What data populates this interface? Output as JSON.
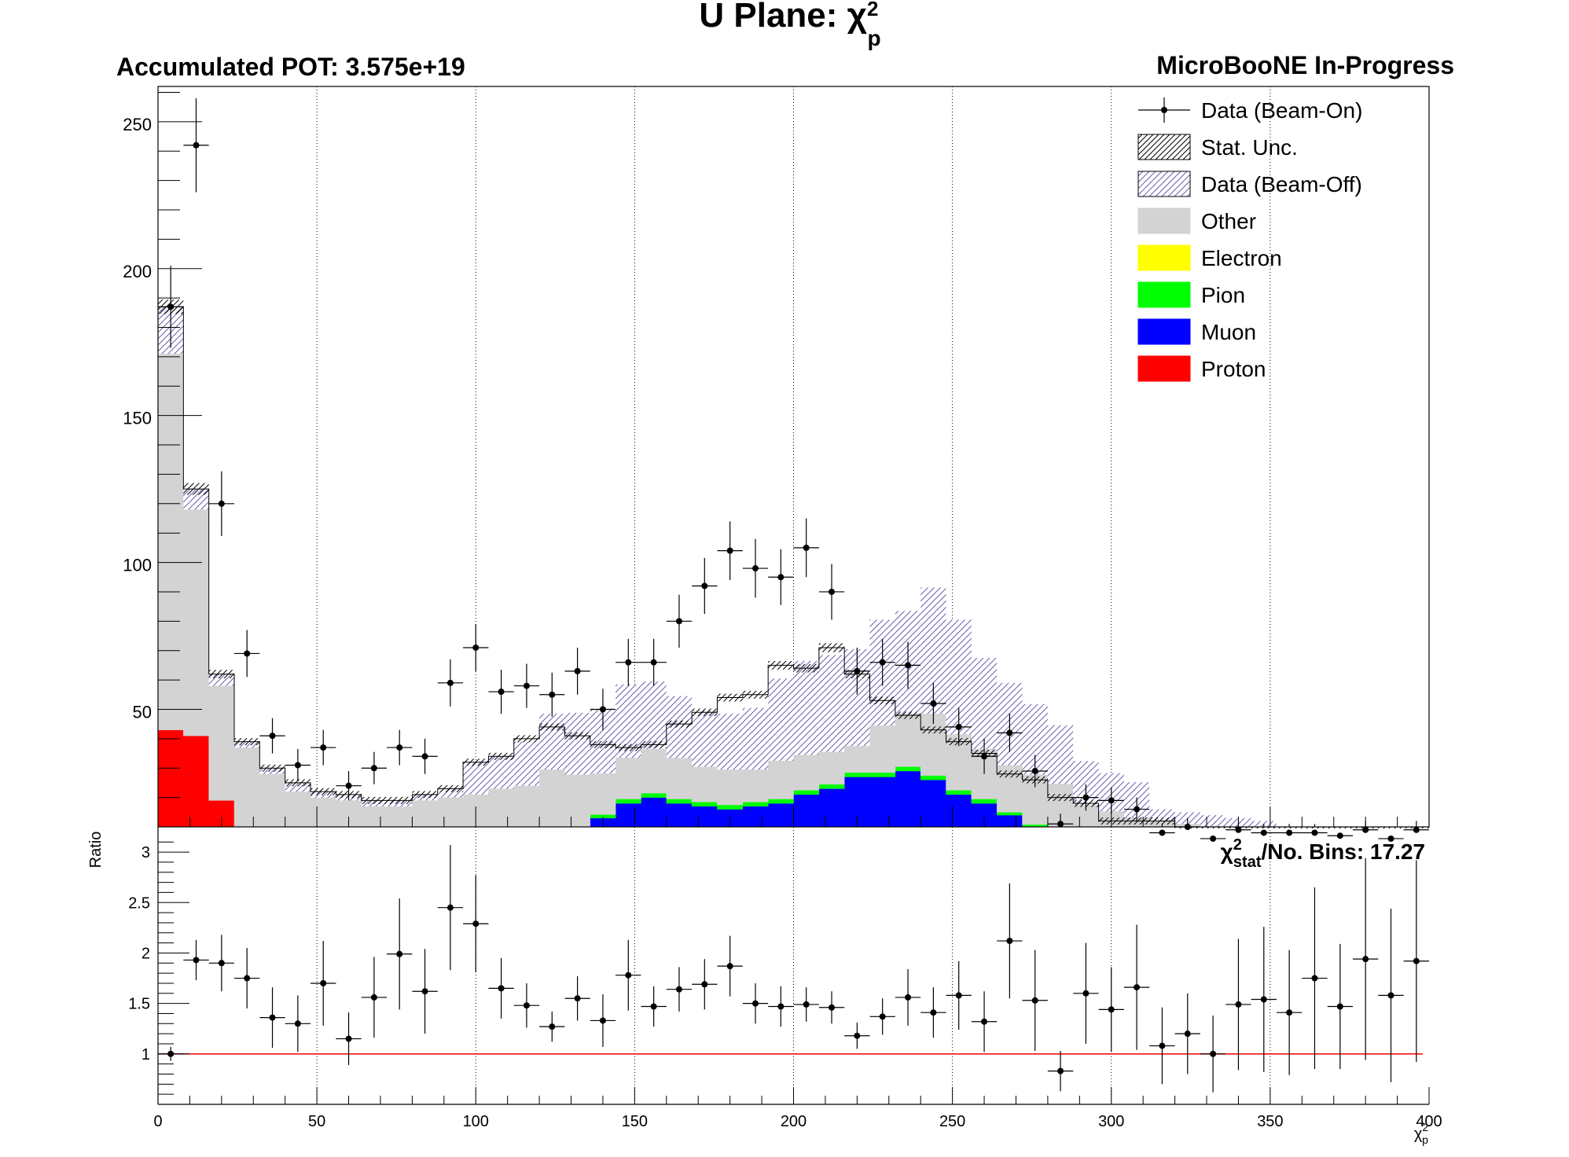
{
  "chart_data": [
    {
      "type": "histogram",
      "title_main": "U Plane: ",
      "title_symbol": "χ",
      "title_sup": "2",
      "title_sub": "p",
      "pot_label": "Accumulated POT: 3.575e+19",
      "experiment_label": "MicroBooNE In-Progress",
      "xlim": [
        0,
        400
      ],
      "ylim": [
        10,
        262
      ],
      "bin_width": 8,
      "x_ticks": [
        0,
        50,
        100,
        150,
        200,
        250,
        300,
        350,
        400
      ],
      "y_ticks": [
        50,
        100,
        150,
        200,
        250
      ],
      "vertical_grid": true,
      "legend_placement": "top-right",
      "legend": [
        {
          "label": "Data (Beam-On)",
          "style": "marker"
        },
        {
          "label": "Stat. Unc.",
          "style": "hatch-black"
        },
        {
          "label": "Data (Beam-Off)",
          "style": "hatch-purple"
        },
        {
          "label": "Other",
          "color": "#d3d3d3"
        },
        {
          "label": "Electron",
          "color": "#ffff00"
        },
        {
          "label": "Pion",
          "color": "#00ff00"
        },
        {
          "label": "Muon",
          "color": "#0000ff"
        },
        {
          "label": "Proton",
          "color": "#ff0000"
        }
      ],
      "series": [
        {
          "name": "Proton",
          "color": "#ff0000",
          "values": [
            43,
            41,
            19,
            10,
            8,
            5,
            4,
            3,
            2,
            2,
            2,
            2,
            2,
            2,
            2,
            2,
            2,
            2,
            2,
            2,
            2,
            2,
            2,
            2,
            2,
            2,
            2,
            2,
            2,
            2,
            2,
            2,
            2,
            2,
            2,
            2,
            2,
            2,
            2,
            2,
            2,
            2,
            2,
            2,
            2,
            2,
            2,
            2,
            2,
            2
          ]
        },
        {
          "name": "Muon",
          "color": "#0000ff",
          "values": [
            0,
            0,
            0,
            0,
            0,
            0,
            0,
            0,
            0,
            0,
            0,
            0,
            0,
            0,
            0,
            1,
            6,
            11,
            16,
            18,
            16,
            15,
            14,
            15,
            16,
            19,
            21,
            25,
            25,
            27,
            24,
            19,
            16,
            12,
            8,
            6,
            3,
            2,
            1,
            0,
            0,
            0,
            0,
            0,
            0,
            0,
            0,
            0,
            0,
            0
          ]
        },
        {
          "name": "Pion",
          "color": "#00ff00",
          "values": [
            0,
            0,
            0,
            0,
            0,
            0,
            0,
            0,
            0,
            0,
            0,
            0,
            0,
            0,
            0,
            0.5,
            0.8,
            1.2,
            1.5,
            1.5,
            1.5,
            1.5,
            1.5,
            1.5,
            1.5,
            1.5,
            1.5,
            1.5,
            1.5,
            1.5,
            1.5,
            1.5,
            1.5,
            1,
            0.8,
            0.6,
            0.4,
            0.3,
            0.2,
            0,
            0,
            0,
            0,
            0,
            0,
            0,
            0,
            0,
            0,
            0
          ]
        },
        {
          "name": "Electron",
          "color": "#ffff00",
          "values": [
            0,
            0,
            0,
            0,
            0,
            0,
            0,
            0,
            0,
            0,
            0,
            0,
            0,
            0,
            0,
            0,
            0,
            0,
            0,
            0,
            0,
            0,
            0,
            0,
            0,
            0,
            0,
            0,
            0,
            0,
            0,
            0,
            0,
            0,
            0,
            0,
            0,
            0,
            0,
            0,
            0,
            0,
            0,
            0,
            0,
            0,
            0,
            0,
            0,
            0
          ]
        },
        {
          "name": "Other",
          "color": "#d3d3d3",
          "values": [
            128,
            77,
            39,
            27,
            20,
            17,
            16,
            16,
            15,
            15,
            17,
            18,
            19,
            21,
            22,
            26,
            19,
            14,
            14,
            15,
            14,
            12,
            12,
            11,
            13,
            12,
            11,
            9,
            16,
            18,
            21,
            19,
            17,
            16,
            17,
            16,
            12,
            11,
            10,
            10,
            9,
            8,
            8,
            7,
            5,
            4,
            3,
            2,
            2,
            2
          ]
        },
        {
          "name": "Data (Beam-Off)",
          "color": "#8080c0",
          "values": [
            16,
            7,
            4,
            2,
            2,
            3,
            2,
            2,
            2,
            2,
            2,
            3,
            11,
            11,
            15,
            19,
            21,
            22,
            25,
            23,
            21,
            19,
            19,
            21,
            28,
            32,
            33,
            33,
            36,
            35,
            43,
            39,
            31,
            28,
            24,
            20,
            15,
            13,
            12,
            4,
            4,
            4,
            3,
            3,
            3,
            3,
            3,
            3,
            3,
            3
          ]
        }
      ],
      "stack_totals": [
        187,
        125,
        62,
        39,
        30,
        25,
        22,
        21,
        19,
        19,
        21,
        23,
        32,
        34,
        40,
        44,
        41,
        38,
        37,
        38,
        45,
        49,
        54,
        55,
        65,
        64,
        71,
        62,
        53,
        48,
        43,
        39,
        35,
        28,
        26,
        20,
        18,
        12,
        12,
        12,
        8,
        7,
        6,
        6,
        6,
        6,
        6,
        6,
        6,
        6
      ],
      "data_beam_on": {
        "values": [
          187,
          242,
          120,
          69,
          41,
          31,
          37,
          24,
          30,
          37,
          34,
          59,
          71,
          56,
          58,
          55,
          63,
          50,
          66,
          66,
          80,
          92,
          104,
          98,
          95,
          105,
          90,
          63,
          66,
          65,
          52,
          44,
          34,
          42,
          29,
          11,
          20,
          19,
          16,
          8,
          10,
          6,
          9,
          8,
          8,
          8,
          7,
          9,
          6,
          9
        ],
        "errors": [
          14,
          16,
          11,
          8,
          6,
          5.5,
          6,
          5,
          5.5,
          6,
          6,
          8,
          8,
          7.5,
          7.5,
          7.5,
          8,
          7,
          8,
          8,
          9,
          9.5,
          10,
          10,
          9.5,
          10,
          9.5,
          8,
          8,
          8,
          7,
          6.5,
          6,
          6.5,
          5.5,
          3.5,
          4.5,
          4.5,
          4,
          3,
          3,
          2.5,
          3,
          3,
          3,
          3,
          2.5,
          3,
          2.5,
          3
        ]
      }
    },
    {
      "type": "scatter",
      "ylabel": "Ratio",
      "chi2_symbol": "χ",
      "chi2_sup": "2",
      "chi2_sub": "stat",
      "chi2_text": "/No. Bins: 17.27",
      "xlabel_symbol": "χ",
      "xlabel_sup": "2",
      "xlabel_sub": "p",
      "xlim": [
        0,
        400
      ],
      "ylim": [
        0.5,
        3.25
      ],
      "x_ticks": [
        0,
        50,
        100,
        150,
        200,
        250,
        300,
        350,
        400
      ],
      "x_tick_labels": [
        "0",
        "50",
        "100",
        "150",
        "200",
        "250",
        "300",
        "350",
        "400"
      ],
      "y_ticks": [
        1,
        1.5,
        2,
        2.5,
        3
      ],
      "y_tick_labels": [
        "1",
        "1.5",
        "2",
        "2.5",
        "3"
      ],
      "reference_line": {
        "y": 1,
        "color": "#ff0000"
      },
      "vertical_grid": true,
      "values": [
        1.0,
        1.93,
        1.9,
        1.75,
        1.36,
        1.3,
        1.7,
        1.15,
        1.56,
        1.99,
        1.62,
        2.45,
        2.29,
        1.65,
        1.48,
        1.27,
        1.55,
        1.33,
        1.78,
        1.47,
        1.64,
        1.69,
        1.87,
        1.5,
        1.47,
        1.49,
        1.46,
        1.18,
        1.37,
        1.56,
        1.41,
        1.58,
        1.32,
        2.12,
        1.53,
        0.83,
        1.6,
        1.44,
        1.66,
        1.08,
        1.2,
        1.0,
        1.49,
        1.54,
        1.41,
        1.75,
        1.47,
        1.94,
        1.58,
        1.92
      ],
      "errors": [
        0.07,
        0.2,
        0.28,
        0.3,
        0.3,
        0.28,
        0.42,
        0.26,
        0.4,
        0.55,
        0.42,
        0.62,
        0.48,
        0.3,
        0.22,
        0.15,
        0.22,
        0.26,
        0.35,
        0.2,
        0.22,
        0.25,
        0.3,
        0.2,
        0.2,
        0.17,
        0.16,
        0.13,
        0.18,
        0.28,
        0.25,
        0.34,
        0.3,
        0.57,
        0.5,
        0.2,
        0.5,
        0.42,
        0.62,
        0.38,
        0.4,
        0.38,
        0.65,
        0.72,
        0.62,
        0.9,
        0.62,
        1.0,
        0.86,
        1.0
      ]
    }
  ]
}
